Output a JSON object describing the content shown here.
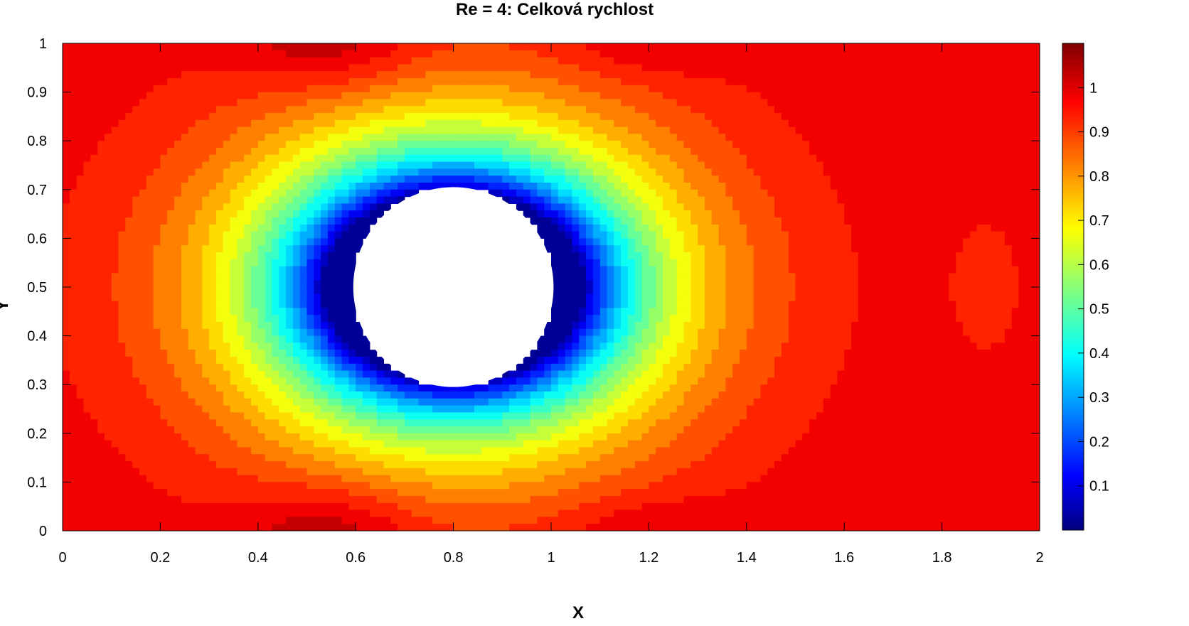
{
  "chart_data": {
    "type": "contour",
    "title": "Re = 4: Celková rychlost",
    "xlabel": "X",
    "ylabel": "Y",
    "xlim": [
      0,
      2
    ],
    "ylim": [
      0,
      1
    ],
    "x_ticks": [
      "0",
      "0.2",
      "0.4",
      "0.6",
      "0.8",
      "1",
      "1.2",
      "1.4",
      "1.6",
      "1.8",
      "2"
    ],
    "y_ticks": [
      "0",
      "0.1",
      "0.2",
      "0.3",
      "0.4",
      "0.5",
      "0.6",
      "0.7",
      "0.8",
      "0.9",
      "1"
    ],
    "colorbar": {
      "colormap": "jet",
      "range": [
        0,
        1.1
      ],
      "ticks": [
        "0.1",
        "0.2",
        "0.3",
        "0.4",
        "0.5",
        "0.6",
        "0.7",
        "0.8",
        "0.9",
        "1"
      ]
    },
    "obstacle": {
      "shape": "circle",
      "center": [
        0.8,
        0.5
      ],
      "radius": 0.205
    },
    "grid": false
  }
}
